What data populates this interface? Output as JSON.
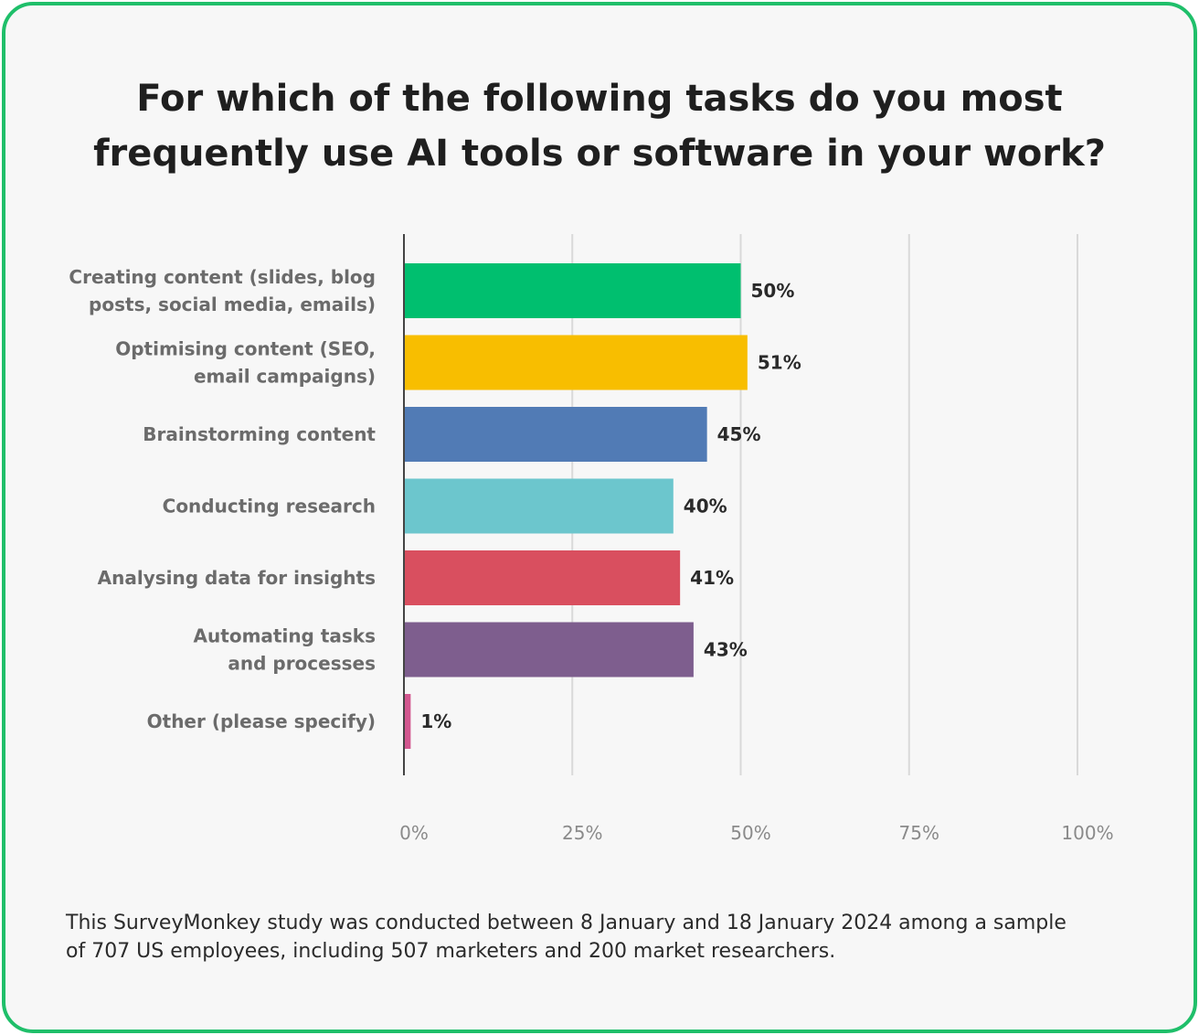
{
  "chart_data": {
    "type": "bar",
    "orientation": "horizontal",
    "title_lines": [
      "For which of the following tasks do you most",
      "frequently use AI tools or software in your work?"
    ],
    "categories": [
      [
        "Creating content (slides, blog",
        "posts, social media, emails)"
      ],
      [
        "Optimising content (SEO,",
        "email campaigns)"
      ],
      [
        "Brainstorming content"
      ],
      [
        "Conducting research"
      ],
      [
        "Analysing data for insights"
      ],
      [
        "Automating tasks",
        "and processes"
      ],
      [
        "Other (please specify)"
      ]
    ],
    "values": [
      50,
      51,
      45,
      40,
      41,
      43,
      1
    ],
    "value_labels": [
      "50%",
      "51%",
      "45%",
      "40%",
      "41%",
      "43%",
      "1%"
    ],
    "colors": [
      "#00bf6f",
      "#f8be00",
      "#517bb5",
      "#6cc6cd",
      "#d94f5f",
      "#7e5e8e",
      "#d2578f"
    ],
    "xlim": [
      0,
      100
    ],
    "xticks": [
      0,
      25,
      50,
      75,
      100
    ],
    "xtick_labels": [
      "0%",
      "25%",
      "50%",
      "75%",
      "100%"
    ],
    "grid": true,
    "legend": false
  },
  "footnote_lines": [
    "This SurveyMonkey study was conducted between 8 January and 18 January 2024 among a sample",
    "of 707 US employees, including 507 marketers and 200 market researchers."
  ],
  "colors": {
    "border": "#1fbf6a",
    "background": "#f7f7f7",
    "gridline": "#d9d9d9",
    "axis": "#444444"
  }
}
